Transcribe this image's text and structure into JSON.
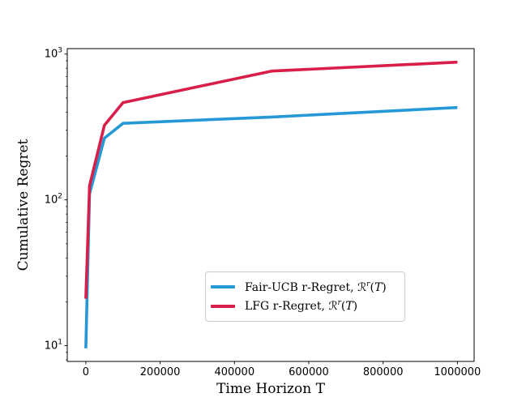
{
  "figure": {
    "xlabel": "Time Horizon T",
    "ylabel": "Cumulative Regret"
  },
  "legend": {
    "entries": [
      {
        "id": "fair-ucb",
        "color": "#2499d6",
        "prefix": "Fair-UCB r-Regret, ",
        "scriptR": "ℛ",
        "sup": "r",
        "paren_open": "(",
        "t_var": "T",
        "paren_close": ")"
      },
      {
        "id": "lfg",
        "color": "#d91e49",
        "prefix": "LFG r-Regret, ",
        "scriptR": "ℛ",
        "sup": "r",
        "paren_open": "(",
        "t_var": "T",
        "paren_close": ")"
      }
    ]
  },
  "chart_data": {
    "type": "line",
    "title": "",
    "xlabel": "Time Horizon T",
    "ylabel": "Cumulative Regret",
    "grid": false,
    "legend_position": "lower right inside",
    "x_axis": {
      "scale": "linear",
      "lim": [
        -50000,
        1045000
      ],
      "ticks": [
        {
          "value": 0,
          "label": "0"
        },
        {
          "value": 200000,
          "label": "200000"
        },
        {
          "value": 400000,
          "label": "400000"
        },
        {
          "value": 600000,
          "label": "600000"
        },
        {
          "value": 800000,
          "label": "800000"
        },
        {
          "value": 1000000,
          "label": "1000000"
        }
      ]
    },
    "y_axis": {
      "scale": "log",
      "lim": [
        7.8,
        1090
      ],
      "ticks": [
        {
          "value": 10,
          "base": "10",
          "exp": "1"
        },
        {
          "value": 100,
          "base": "10",
          "exp": "2"
        },
        {
          "value": 1000,
          "base": "10",
          "exp": "3"
        }
      ]
    },
    "series": [
      {
        "name": "Fair-UCB r-Regret, R^r(T)",
        "color": "#2499d6",
        "x": [
          1,
          10000,
          50000,
          100000,
          500000,
          1000000
        ],
        "y": [
          9.6,
          110,
          265,
          335,
          370,
          430
        ]
      },
      {
        "name": "LFG r-Regret, R^r(T)",
        "color": "#d91e49",
        "x": [
          1,
          10000,
          50000,
          100000,
          500000,
          1000000
        ],
        "y": [
          21,
          125,
          325,
          465,
          765,
          880
        ]
      }
    ]
  }
}
